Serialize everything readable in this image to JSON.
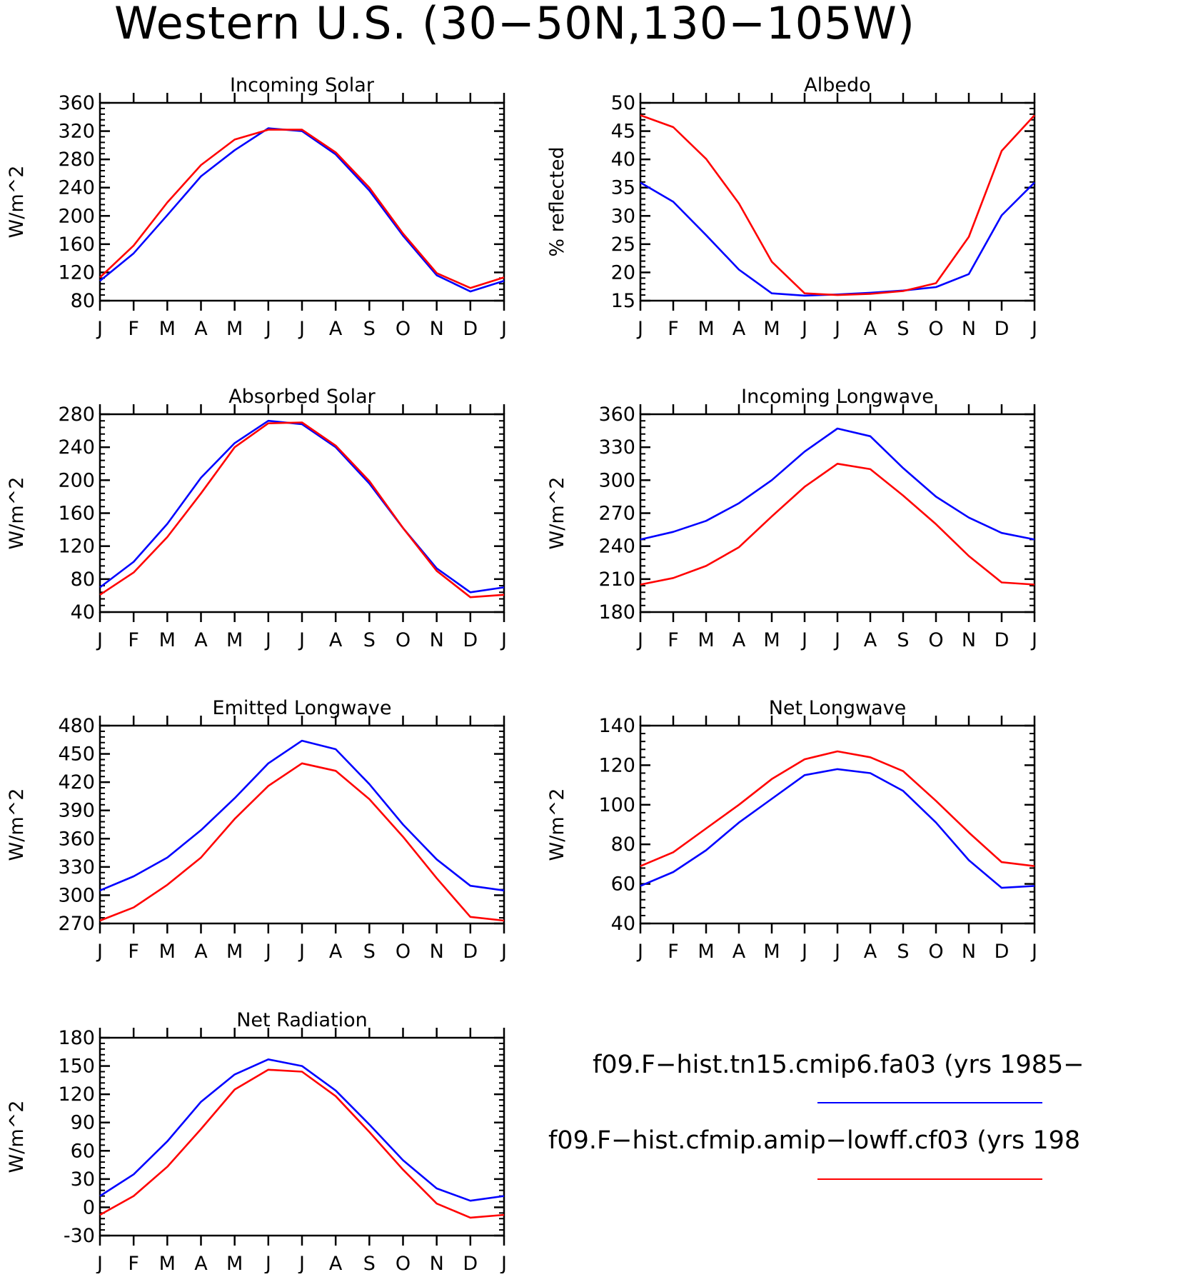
{
  "title": "Western U.S. (30−50N,130−105W)",
  "months": [
    "J",
    "F",
    "M",
    "A",
    "M",
    "J",
    "J",
    "A",
    "S",
    "O",
    "N",
    "D",
    "J"
  ],
  "colors": {
    "series_1": "#0000ff",
    "series_2": "#ff0000"
  },
  "legend": [
    {
      "label": "f09.F−hist.tn15.cmip6.fa03 (yrs 1985−",
      "color": "#0000ff"
    },
    {
      "label": "f09.F−hist.cfmip.amip−lowff.cf03 (yrs 198",
      "color": "#ff0000"
    }
  ],
  "chart_data": [
    {
      "type": "line",
      "title": "Incoming Solar",
      "ylabel": "W/m^2",
      "ylim": [
        80,
        360
      ],
      "yticks": [
        80,
        120,
        160,
        200,
        240,
        280,
        320,
        360
      ],
      "x": [
        "J",
        "F",
        "M",
        "A",
        "M",
        "J",
        "J",
        "A",
        "S",
        "O",
        "N",
        "D",
        "J"
      ],
      "series": [
        {
          "color": "#0000ff",
          "values": [
            108,
            147,
            201,
            256,
            293,
            324,
            320,
            287,
            236,
            172,
            116,
            93,
            108
          ]
        },
        {
          "color": "#ff0000",
          "values": [
            113,
            158,
            219,
            272,
            308,
            322,
            322,
            290,
            240,
            175,
            119,
            98,
            113
          ]
        }
      ]
    },
    {
      "type": "line",
      "title": "Albedo",
      "ylabel": "% reflected",
      "ylim": [
        15,
        50
      ],
      "yticks": [
        15,
        20,
        25,
        30,
        35,
        40,
        45,
        50
      ],
      "x": [
        "J",
        "F",
        "M",
        "A",
        "M",
        "J",
        "J",
        "A",
        "S",
        "O",
        "N",
        "D",
        "J"
      ],
      "series": [
        {
          "color": "#0000ff",
          "values": [
            35.9,
            32.5,
            26.6,
            20.5,
            16.3,
            15.9,
            16.1,
            16.4,
            16.8,
            17.4,
            19.7,
            30.1,
            35.9
          ]
        },
        {
          "color": "#ff0000",
          "values": [
            47.8,
            45.7,
            40.1,
            32.2,
            21.9,
            16.3,
            16.0,
            16.2,
            16.7,
            18.1,
            26.3,
            41.5,
            47.8
          ]
        }
      ]
    },
    {
      "type": "line",
      "title": "Absorbed Solar",
      "ylabel": "W/m^2",
      "ylim": [
        40,
        280
      ],
      "yticks": [
        40,
        80,
        120,
        160,
        200,
        240,
        280
      ],
      "x": [
        "J",
        "F",
        "M",
        "A",
        "M",
        "J",
        "J",
        "A",
        "S",
        "O",
        "N",
        "D",
        "J"
      ],
      "series": [
        {
          "color": "#0000ff",
          "values": [
            70,
            101,
            147,
            203,
            245,
            272,
            268,
            240,
            196,
            142,
            93,
            64,
            70
          ]
        },
        {
          "color": "#ff0000",
          "values": [
            61,
            88,
            131,
            184,
            240,
            269,
            270,
            242,
            199,
            142,
            90,
            58,
            61
          ]
        }
      ]
    },
    {
      "type": "line",
      "title": "Incoming Longwave",
      "ylabel": "W/m^2",
      "ylim": [
        180,
        360
      ],
      "yticks": [
        180,
        210,
        240,
        270,
        300,
        330,
        360
      ],
      "x": [
        "J",
        "F",
        "M",
        "A",
        "M",
        "J",
        "J",
        "A",
        "S",
        "O",
        "N",
        "D",
        "J"
      ],
      "series": [
        {
          "color": "#0000ff",
          "values": [
            246,
            253,
            263,
            279,
            300,
            326,
            347,
            340,
            311,
            285,
            266,
            252,
            246
          ]
        },
        {
          "color": "#ff0000",
          "values": [
            205,
            211,
            222,
            239,
            267,
            294,
            315,
            310,
            286,
            260,
            231,
            207,
            205
          ]
        }
      ]
    },
    {
      "type": "line",
      "title": "Emitted Longwave",
      "ylabel": "W/m^2",
      "ylim": [
        270,
        480
      ],
      "yticks": [
        270,
        300,
        330,
        360,
        390,
        420,
        450,
        480
      ],
      "x": [
        "J",
        "F",
        "M",
        "A",
        "M",
        "J",
        "J",
        "A",
        "S",
        "O",
        "N",
        "D",
        "J"
      ],
      "series": [
        {
          "color": "#0000ff",
          "values": [
            305,
            320,
            340,
            369,
            403,
            440,
            464,
            455,
            418,
            375,
            338,
            310,
            305
          ]
        },
        {
          "color": "#ff0000",
          "values": [
            273,
            287,
            311,
            340,
            381,
            416,
            440,
            432,
            402,
            362,
            318,
            277,
            273
          ]
        }
      ]
    },
    {
      "type": "line",
      "title": "Net Longwave",
      "ylabel": "W/m^2",
      "ylim": [
        40,
        140
      ],
      "yticks": [
        40,
        60,
        80,
        100,
        120,
        140
      ],
      "x": [
        "J",
        "F",
        "M",
        "A",
        "M",
        "J",
        "J",
        "A",
        "S",
        "O",
        "N",
        "D",
        "J"
      ],
      "series": [
        {
          "color": "#0000ff",
          "values": [
            59,
            66,
            77,
            91,
            103,
            115,
            118,
            116,
            107,
            91,
            72,
            58,
            59
          ]
        },
        {
          "color": "#ff0000",
          "values": [
            69,
            76,
            88,
            100,
            113,
            123,
            127,
            124,
            117,
            102,
            86,
            71,
            69
          ]
        }
      ]
    },
    {
      "type": "line",
      "title": "Net Radiation",
      "ylabel": "W/m^2",
      "ylim": [
        -30,
        180
      ],
      "yticks": [
        -30,
        0,
        30,
        60,
        90,
        120,
        150,
        180
      ],
      "x": [
        "J",
        "F",
        "M",
        "A",
        "M",
        "J",
        "J",
        "A",
        "S",
        "O",
        "N",
        "D",
        "J"
      ],
      "series": [
        {
          "color": "#0000ff",
          "values": [
            12,
            35,
            70,
            112,
            141,
            157,
            150,
            124,
            88,
            50,
            20,
            7,
            12
          ]
        },
        {
          "color": "#ff0000",
          "values": [
            -8,
            12,
            43,
            83,
            125,
            146,
            144,
            118,
            80,
            40,
            4,
            -11,
            -8
          ]
        }
      ]
    }
  ]
}
